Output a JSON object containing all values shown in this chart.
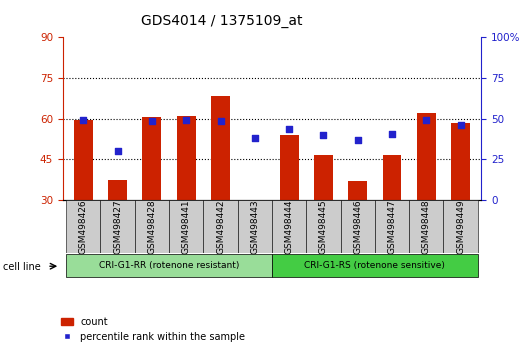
{
  "title": "GDS4014 / 1375109_at",
  "samples": [
    "GSM498426",
    "GSM498427",
    "GSM498428",
    "GSM498441",
    "GSM498442",
    "GSM498443",
    "GSM498444",
    "GSM498445",
    "GSM498446",
    "GSM498447",
    "GSM498448",
    "GSM498449"
  ],
  "counts": [
    59.5,
    37.5,
    60.5,
    61.0,
    68.5,
    30.0,
    54.0,
    46.5,
    37.0,
    46.5,
    62.0,
    58.5
  ],
  "percentile_ranks": [
    49.0,
    30.0,
    48.5,
    49.0,
    48.5,
    38.0,
    43.5,
    40.0,
    37.0,
    40.5,
    49.0,
    46.0
  ],
  "group1_label": "CRI-G1-RR (rotenone resistant)",
  "group2_label": "CRI-G1-RS (rotenone sensitive)",
  "group1_count": 6,
  "group2_count": 6,
  "ylim_left": [
    30,
    90
  ],
  "ylim_right": [
    0,
    100
  ],
  "yticks_left": [
    30,
    45,
    60,
    75,
    90
  ],
  "yticks_right": [
    0,
    25,
    50,
    75,
    100
  ],
  "bar_color": "#cc2200",
  "dot_color": "#2222cc",
  "bar_bottom": 30,
  "legend_count_label": "count",
  "legend_pct_label": "percentile rank within the sample",
  "group1_bg": "#99dd99",
  "group2_bg": "#44cc44",
  "xticklabel_bg": "#cccccc",
  "cell_line_label": "cell line",
  "title_fontsize": 10,
  "tick_fontsize": 7.5,
  "bar_width": 0.55
}
